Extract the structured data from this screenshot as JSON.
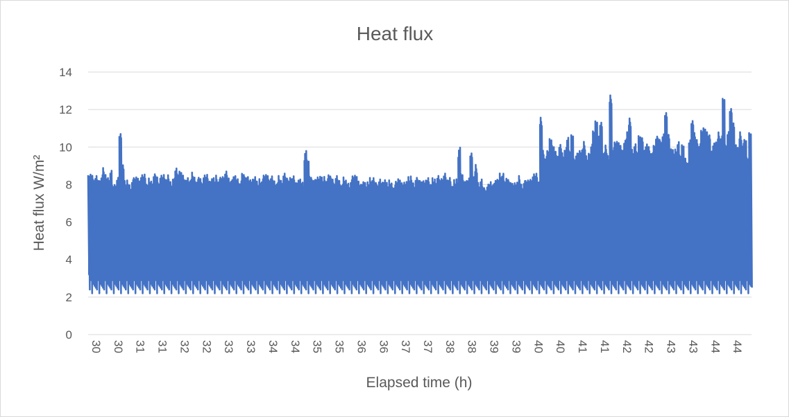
{
  "chart_data": {
    "type": "line",
    "title": "Heat flux",
    "xlabel": "Elapsed time (h)",
    "ylabel": "Heat flux W/m²",
    "ylim": [
      0,
      14
    ],
    "yticks": [
      "0",
      "2",
      "4",
      "6",
      "8",
      "10",
      "12",
      "14"
    ],
    "xlim": [
      30,
      44.95
    ],
    "x_tick_labels": [
      "30",
      "30",
      "31",
      "31",
      "32",
      "32",
      "33",
      "33",
      "34",
      "34",
      "35",
      "35",
      "36",
      "36",
      "37",
      "37",
      "38",
      "38",
      "39",
      "39",
      "40",
      "40",
      "41",
      "41",
      "42",
      "42",
      "43",
      "43",
      "44",
      "44"
    ],
    "grid": true,
    "legend": "none",
    "series": [
      {
        "color": "#4472C4",
        "samples_per_hour": 20,
        "x_start": 30,
        "envelope_max": [
          8.5,
          8.6,
          8.4,
          8.5,
          8.3,
          8.5,
          8.9,
          8.6,
          8.5,
          8.8,
          8.0,
          8.1,
          8.4,
          10.8,
          9.2,
          8.2,
          8.3,
          8.1,
          8.3,
          8.4,
          8.5,
          8.2,
          8.6,
          8.7,
          8.0,
          8.4,
          8.3,
          8.6,
          8.5,
          8.2,
          8.5,
          8.6,
          8.4,
          8.5,
          8.2,
          8.4,
          8.9,
          8.6,
          8.8,
          8.5,
          8.3,
          8.5,
          8.4,
          8.7,
          8.5,
          8.3,
          8.4,
          8.2,
          8.5,
          8.6,
          8.3,
          8.5,
          8.4,
          8.6,
          8.3,
          8.4,
          8.5,
          8.7,
          8.4,
          8.3,
          8.6,
          8.5,
          8.4,
          8.2,
          8.6,
          8.5,
          8.4,
          8.3,
          8.4,
          8.6,
          8.2,
          8.4,
          8.3,
          8.5,
          8.6,
          8.4,
          8.5,
          8.3,
          8.2,
          8.5,
          8.3,
          8.6,
          8.4,
          8.3,
          8.5,
          8.5,
          8.2,
          8.4,
          8.3,
          8.2,
          9.8,
          9.3,
          8.5,
          8.4,
          8.3,
          8.5,
          8.6,
          8.4,
          8.5,
          8.3,
          8.5,
          8.4,
          8.2,
          8.5,
          8.3,
          8.1,
          8.4,
          8.3,
          8.2,
          8.3,
          8.5,
          8.6,
          8.2,
          8.1,
          8.3,
          8.1,
          8.2,
          8.5,
          8.4,
          8.2,
          8.1,
          8.3,
          8.2,
          8.4,
          8.1,
          8.3,
          8.2,
          8.0,
          8.2,
          8.4,
          8.1,
          8.2,
          8.3,
          8.4,
          8.5,
          8.2,
          8.4,
          8.3,
          8.3,
          8.2,
          8.3,
          8.5,
          8.2,
          8.4,
          8.4,
          8.5,
          8.3,
          8.4,
          8.6,
          8.3,
          8.5,
          8.1,
          8.3,
          8.4,
          10.0,
          8.6,
          8.3,
          8.2,
          8.4,
          9.8,
          8.6,
          9.1,
          8.2,
          8.3,
          7.9,
          7.8,
          8.0,
          8.2,
          8.1,
          8.4,
          8.3,
          8.7,
          8.6,
          8.2,
          8.4,
          8.3,
          8.1,
          8.2,
          8.3,
          8.5,
          8.1,
          8.2,
          8.2,
          8.3,
          8.4,
          8.6,
          8.7,
          8.3,
          11.6,
          9.9,
          9.5,
          9.8,
          10.5,
          10.2,
          9.8,
          9.6,
          10.3,
          9.7,
          9.9,
          10.5,
          9.8,
          10.7,
          9.5,
          9.7,
          9.9,
          10.0,
          10.3,
          9.6,
          9.8,
          10.2,
          10.9,
          11.5,
          10.6,
          11.4,
          9.8,
          10.1,
          9.6,
          12.9,
          10.0,
          10.3,
          10.4,
          10.1,
          9.9,
          10.5,
          10.8,
          11.6,
          10.0,
          10.2,
          9.8,
          10.7,
          10.5,
          9.9,
          10.3,
          10.0,
          9.7,
          10.2,
          10.6,
          10.5,
          10.4,
          10.7,
          11.9,
          10.8,
          10.1,
          9.9,
          10.0,
          10.3,
          9.6,
          10.2,
          9.4,
          9.2,
          10.5,
          11.6,
          10.8,
          10.5,
          10.2,
          10.9,
          11.1,
          10.8,
          10.7,
          9.9,
          10.4,
          10.3,
          10.9,
          10.6,
          12.6,
          10.2,
          10.8,
          12.1,
          11.4,
          10.3,
          10.0,
          10.9,
          10.2,
          10.4,
          9.5,
          10.9
        ]
      }
    ]
  }
}
